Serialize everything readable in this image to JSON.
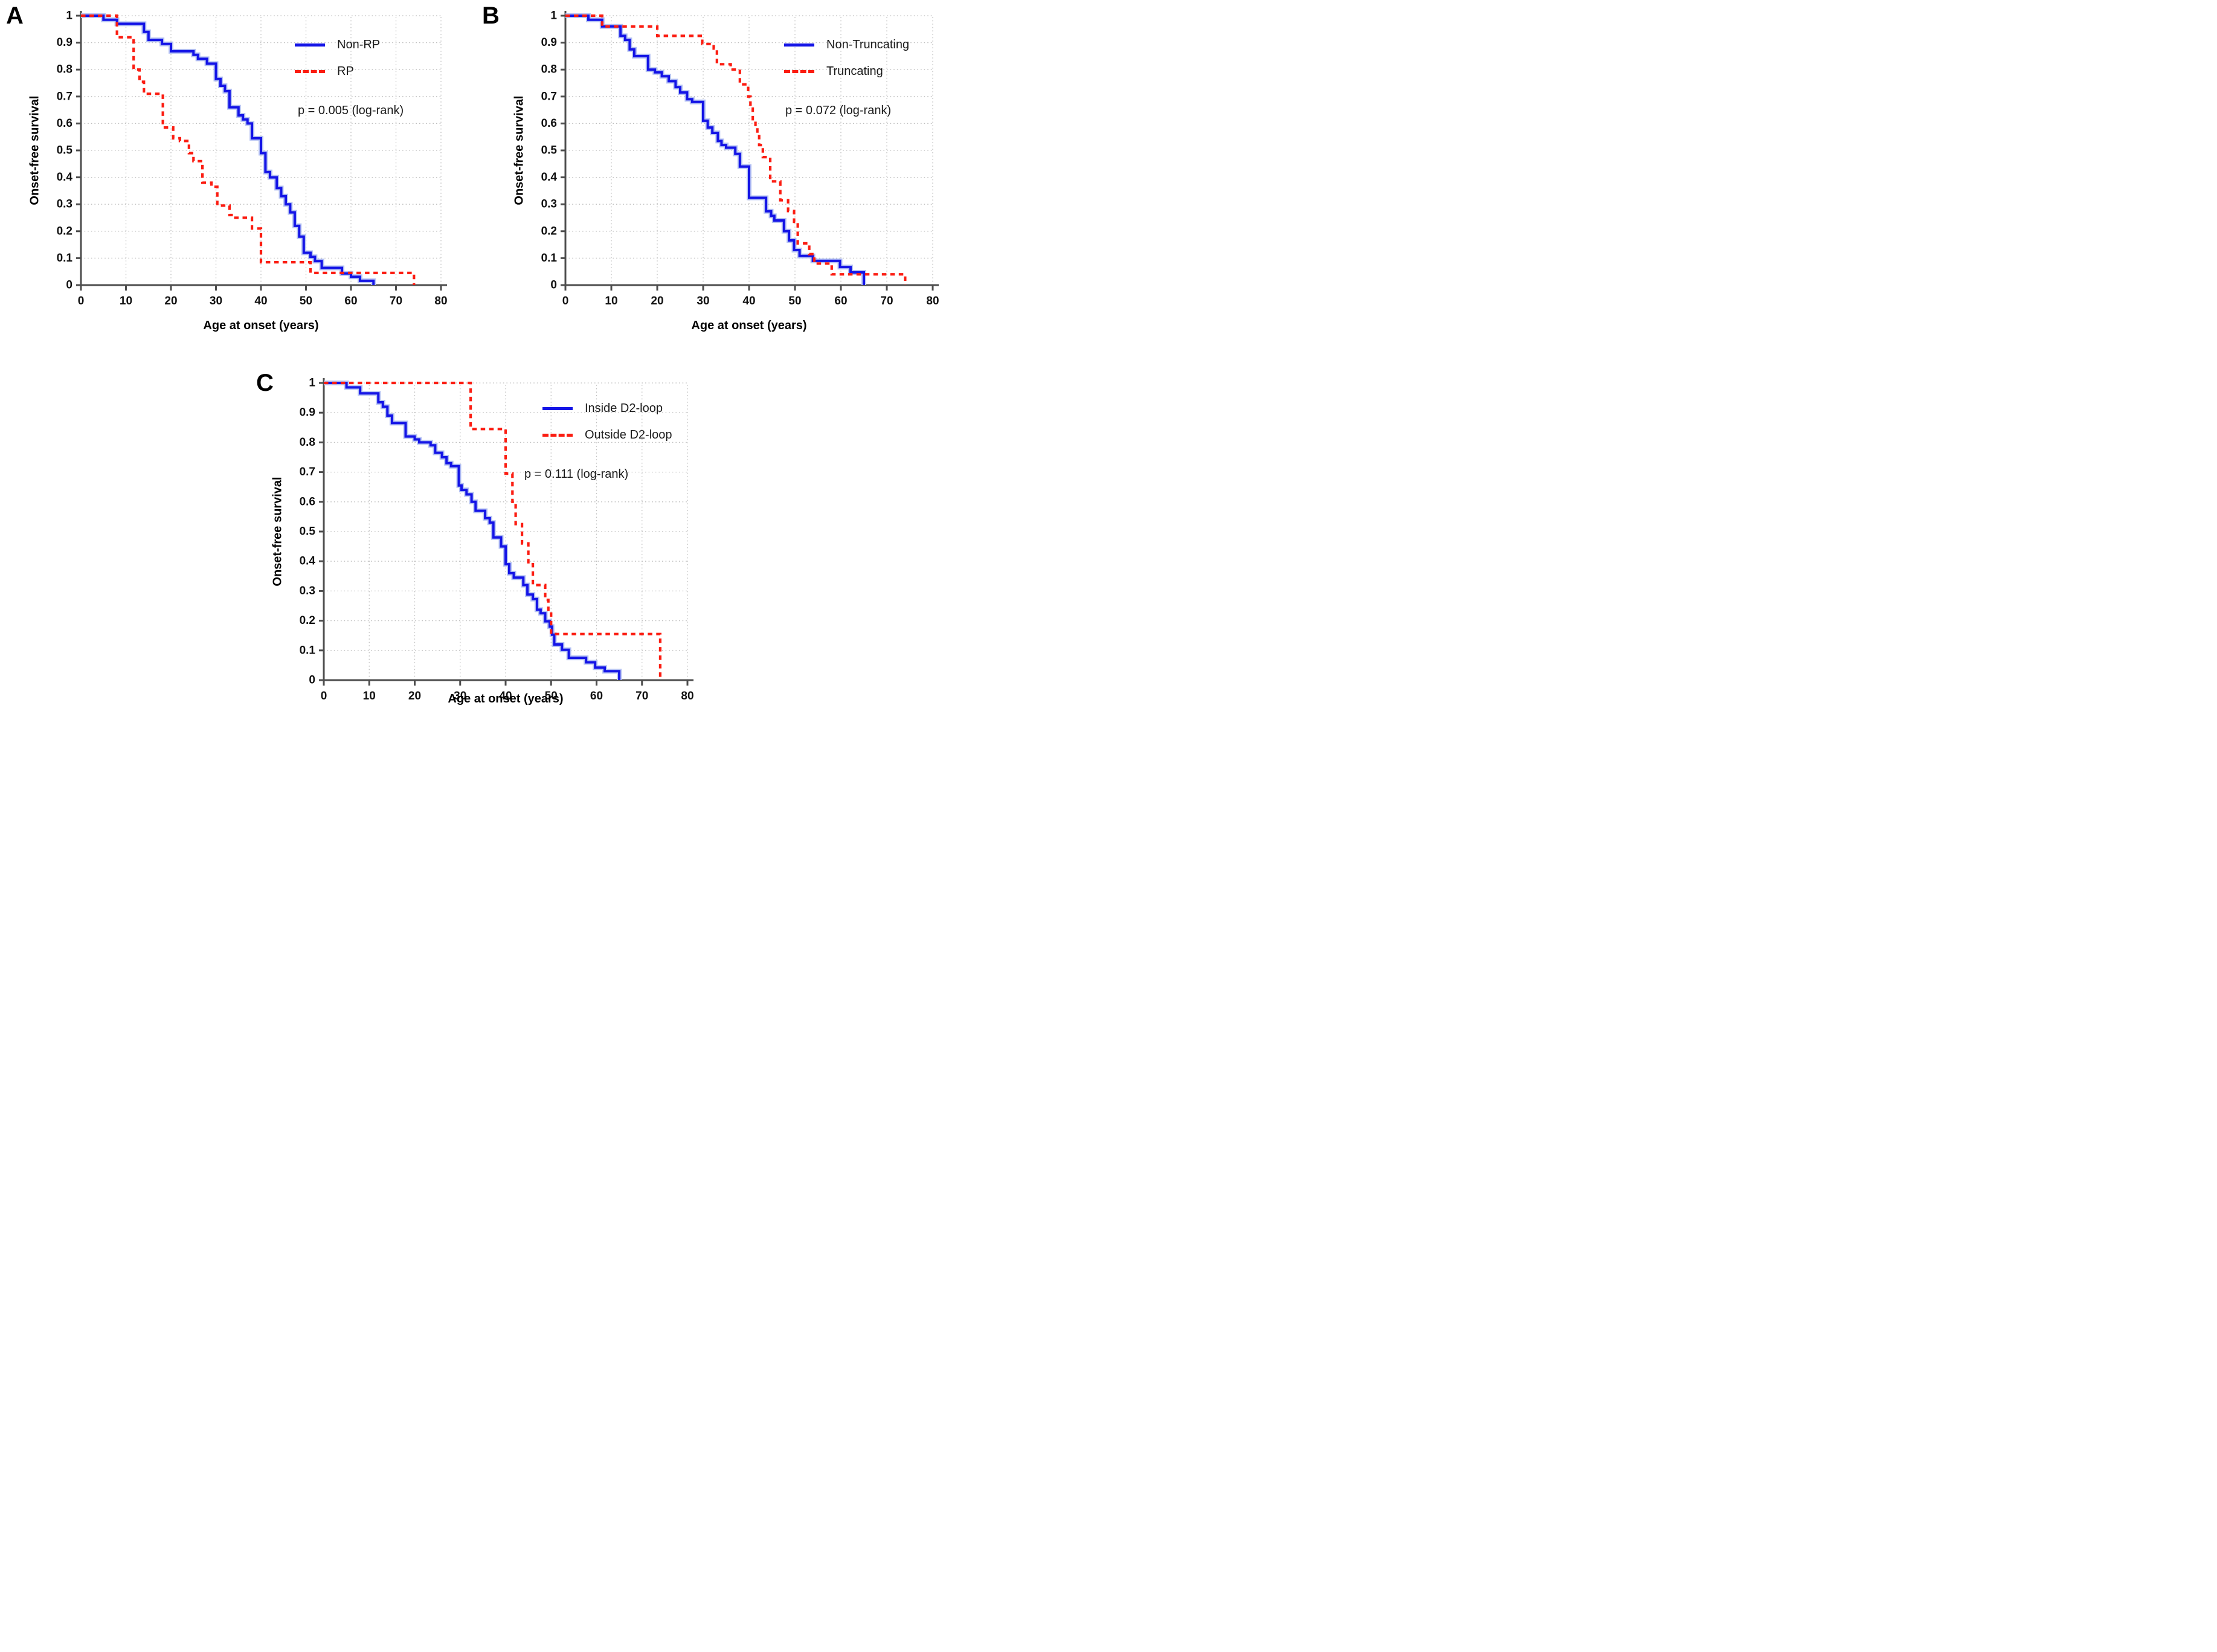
{
  "figure": {
    "background": "#ffffff",
    "blue": "#1414e6",
    "red": "#fb1d12",
    "grid_color": "#bdbdbd",
    "axis_color": "#4d4d4d"
  },
  "chart_data": [
    {
      "panel": "A",
      "type": "line",
      "step": true,
      "title": "",
      "xlabel": "Age at onset (years)",
      "ylabel": "Onset-free survival",
      "xlim": [
        0,
        80
      ],
      "ylim": [
        0,
        1
      ],
      "xticks": [
        0,
        10,
        20,
        30,
        40,
        50,
        60,
        70,
        80
      ],
      "yticks": [
        "0",
        "0.1",
        "0.2",
        "0.3",
        "0.4",
        "0.5",
        "0.6",
        "0.7",
        "0.8",
        "0.9",
        "1"
      ],
      "grid": true,
      "legend_position": "upper right",
      "annotation": "p = 0.005 (log-rank)",
      "series": [
        {
          "name": "Non-RP",
          "color": "#1414e6",
          "line_style": "solid",
          "points": [
            [
              0,
              1
            ],
            [
              5,
              0.985
            ],
            [
              8,
              0.97
            ],
            [
              14,
              0.94
            ],
            [
              15,
              0.91
            ],
            [
              18,
              0.895
            ],
            [
              20,
              0.868
            ],
            [
              25,
              0.855
            ],
            [
              26,
              0.84
            ],
            [
              28,
              0.822
            ],
            [
              30,
              0.765
            ],
            [
              31,
              0.74
            ],
            [
              32,
              0.72
            ],
            [
              33,
              0.66
            ],
            [
              35,
              0.63
            ],
            [
              36,
              0.615
            ],
            [
              37,
              0.6
            ],
            [
              38,
              0.545
            ],
            [
              40,
              0.49
            ],
            [
              41,
              0.42
            ],
            [
              42,
              0.4
            ],
            [
              43.5,
              0.36
            ],
            [
              44.5,
              0.33
            ],
            [
              45.5,
              0.3
            ],
            [
              46.5,
              0.27
            ],
            [
              47.5,
              0.22
            ],
            [
              48.5,
              0.18
            ],
            [
              49.5,
              0.12
            ],
            [
              51,
              0.105
            ],
            [
              52,
              0.089
            ],
            [
              53.5,
              0.064
            ],
            [
              58,
              0.043
            ],
            [
              60,
              0.031
            ],
            [
              62,
              0.016
            ],
            [
              65,
              0
            ]
          ]
        },
        {
          "name": "RP",
          "color": "#fb1d12",
          "line_style": "dashed",
          "points": [
            [
              0,
              1
            ],
            [
              8,
              0.92
            ],
            [
              11.7,
              0.8
            ],
            [
              13,
              0.755
            ],
            [
              14,
              0.71
            ],
            [
              18.2,
              0.585
            ],
            [
              20.5,
              0.545
            ],
            [
              22,
              0.535
            ],
            [
              24,
              0.49
            ],
            [
              25,
              0.46
            ],
            [
              27,
              0.38
            ],
            [
              29,
              0.365
            ],
            [
              30.3,
              0.295
            ],
            [
              33,
              0.26
            ],
            [
              34,
              0.25
            ],
            [
              38,
              0.21
            ],
            [
              40,
              0.085
            ],
            [
              51,
              0.045
            ],
            [
              74,
              0
            ]
          ]
        }
      ]
    },
    {
      "panel": "B",
      "type": "line",
      "step": true,
      "title": "",
      "xlabel": "Age at onset (years)",
      "ylabel": "Onset-free survival",
      "xlim": [
        0,
        80
      ],
      "ylim": [
        0,
        1
      ],
      "xticks": [
        0,
        10,
        20,
        30,
        40,
        50,
        60,
        70,
        80
      ],
      "yticks": [
        "0",
        "0.1",
        "0.2",
        "0.3",
        "0.4",
        "0.5",
        "0.6",
        "0.7",
        "0.8",
        "0.9",
        "1"
      ],
      "grid": true,
      "legend_position": "upper right",
      "annotation": "p = 0.072 (log-rank)",
      "series": [
        {
          "name": "Non-Truncating",
          "color": "#1414e6",
          "line_style": "solid",
          "points": [
            [
              0,
              1
            ],
            [
              5,
              0.985
            ],
            [
              8,
              0.96
            ],
            [
              12,
              0.925
            ],
            [
              13,
              0.91
            ],
            [
              14,
              0.875
            ],
            [
              15,
              0.85
            ],
            [
              18,
              0.8
            ],
            [
              19.5,
              0.79
            ],
            [
              21,
              0.775
            ],
            [
              22.5,
              0.757
            ],
            [
              24,
              0.735
            ],
            [
              25,
              0.715
            ],
            [
              26.5,
              0.69
            ],
            [
              27.6,
              0.68
            ],
            [
              30,
              0.61
            ],
            [
              31,
              0.585
            ],
            [
              32,
              0.565
            ],
            [
              33.2,
              0.535
            ],
            [
              34,
              0.52
            ],
            [
              35,
              0.51
            ],
            [
              37,
              0.487
            ],
            [
              38,
              0.44
            ],
            [
              40,
              0.324
            ],
            [
              43.7,
              0.274
            ],
            [
              44.8,
              0.257
            ],
            [
              45.5,
              0.24
            ],
            [
              47.6,
              0.2
            ],
            [
              48.7,
              0.166
            ],
            [
              49.8,
              0.13
            ],
            [
              51,
              0.108
            ],
            [
              53.9,
              0.09
            ],
            [
              59.8,
              0.067
            ],
            [
              62.1,
              0.047
            ],
            [
              65,
              0
            ]
          ]
        },
        {
          "name": "Truncating",
          "color": "#fb1d12",
          "line_style": "dashed",
          "points": [
            [
              0,
              1
            ],
            [
              8,
              0.96
            ],
            [
              20,
              0.925
            ],
            [
              29.8,
              0.895
            ],
            [
              32.3,
              0.878
            ],
            [
              33,
              0.82
            ],
            [
              36,
              0.8
            ],
            [
              38,
              0.745
            ],
            [
              39.8,
              0.7
            ],
            [
              40.3,
              0.655
            ],
            [
              40.8,
              0.61
            ],
            [
              41.4,
              0.59
            ],
            [
              41.8,
              0.565
            ],
            [
              42.2,
              0.52
            ],
            [
              43,
              0.475
            ],
            [
              44.6,
              0.385
            ],
            [
              46.8,
              0.315
            ],
            [
              48.5,
              0.275
            ],
            [
              49.8,
              0.235
            ],
            [
              50.6,
              0.155
            ],
            [
              53.1,
              0.115
            ],
            [
              54.2,
              0.08
            ],
            [
              58,
              0.04
            ],
            [
              74,
              0
            ]
          ]
        }
      ]
    },
    {
      "panel": "C",
      "type": "line",
      "step": true,
      "title": "",
      "xlabel": "Age at onset (years)",
      "ylabel": "Onset-free survival",
      "xlim": [
        0,
        80
      ],
      "ylim": [
        0,
        1
      ],
      "xticks": [
        0,
        10,
        20,
        30,
        40,
        50,
        60,
        70,
        80
      ],
      "yticks": [
        "0",
        "0.1",
        "0.2",
        "0.3",
        "0.4",
        "0.5",
        "0.6",
        "0.7",
        "0.8",
        "0.9",
        "1"
      ],
      "grid": true,
      "legend_position": "upper right",
      "annotation": "p = 0.111 (log-rank)",
      "series": [
        {
          "name": "Inside D2-loop",
          "color": "#1414e6",
          "line_style": "solid",
          "points": [
            [
              0,
              1
            ],
            [
              5,
              0.985
            ],
            [
              8,
              0.965
            ],
            [
              12,
              0.935
            ],
            [
              13,
              0.92
            ],
            [
              14,
              0.89
            ],
            [
              15,
              0.865
            ],
            [
              18,
              0.82
            ],
            [
              20,
              0.81
            ],
            [
              21,
              0.8
            ],
            [
              23.5,
              0.79
            ],
            [
              24.5,
              0.765
            ],
            [
              26,
              0.75
            ],
            [
              27,
              0.73
            ],
            [
              28,
              0.72
            ],
            [
              29.7,
              0.655
            ],
            [
              30.3,
              0.64
            ],
            [
              31.4,
              0.625
            ],
            [
              32.5,
              0.6
            ],
            [
              33.4,
              0.57
            ],
            [
              35.5,
              0.545
            ],
            [
              36.5,
              0.53
            ],
            [
              37.3,
              0.48
            ],
            [
              39,
              0.45
            ],
            [
              40,
              0.39
            ],
            [
              40.8,
              0.36
            ],
            [
              41.8,
              0.345
            ],
            [
              43.9,
              0.32
            ],
            [
              44.8,
              0.288
            ],
            [
              46,
              0.273
            ],
            [
              46.9,
              0.237
            ],
            [
              47.7,
              0.225
            ],
            [
              48.7,
              0.198
            ],
            [
              49.7,
              0.18
            ],
            [
              50.2,
              0.153
            ],
            [
              50.7,
              0.12
            ],
            [
              52.4,
              0.102
            ],
            [
              53.9,
              0.075
            ],
            [
              57.7,
              0.06
            ],
            [
              59.7,
              0.042
            ],
            [
              61.8,
              0.03
            ],
            [
              65,
              0
            ]
          ]
        },
        {
          "name": "Outside D2-loop",
          "color": "#fb1d12",
          "line_style": "dashed",
          "points": [
            [
              0,
              1
            ],
            [
              32.3,
              0.845
            ],
            [
              40,
              0.695
            ],
            [
              41.5,
              0.6
            ],
            [
              42.2,
              0.525
            ],
            [
              43.6,
              0.46
            ],
            [
              45,
              0.39
            ],
            [
              46,
              0.32
            ],
            [
              48.7,
              0.27
            ],
            [
              49.4,
              0.23
            ],
            [
              50,
              0.155
            ],
            [
              74,
              0
            ]
          ]
        }
      ]
    }
  ]
}
